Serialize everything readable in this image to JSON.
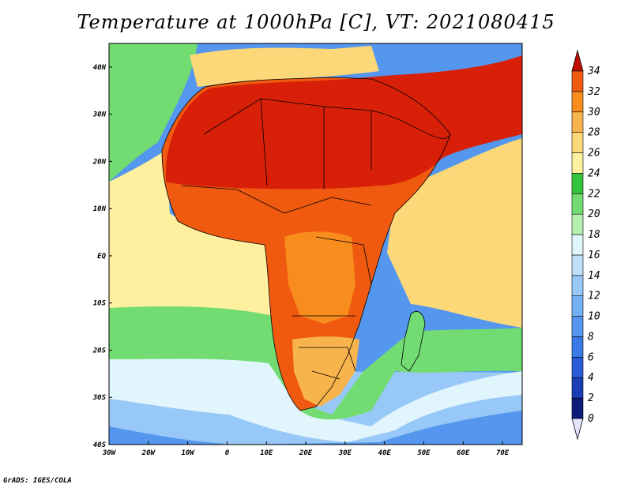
{
  "title": "Temperature at 1000hPa [C], VT: 2021080415",
  "footer": "GrADS: IGES/COLA",
  "map": {
    "projection": "latlon",
    "lon_range": [
      -30,
      75
    ],
    "lat_range": [
      -40,
      45
    ],
    "xticks": [
      {
        "lon": -30,
        "label": "30W"
      },
      {
        "lon": -20,
        "label": "20W"
      },
      {
        "lon": -10,
        "label": "10W"
      },
      {
        "lon": 0,
        "label": "0"
      },
      {
        "lon": 10,
        "label": "10E"
      },
      {
        "lon": 20,
        "label": "20E"
      },
      {
        "lon": 30,
        "label": "30E"
      },
      {
        "lon": 40,
        "label": "40E"
      },
      {
        "lon": 50,
        "label": "50E"
      },
      {
        "lon": 60,
        "label": "60E"
      },
      {
        "lon": 70,
        "label": "70E"
      }
    ],
    "yticks": [
      {
        "lat": 40,
        "label": "40N"
      },
      {
        "lat": 30,
        "label": "30N"
      },
      {
        "lat": 20,
        "label": "20N"
      },
      {
        "lat": 10,
        "label": "10N"
      },
      {
        "lat": 0,
        "label": "EQ"
      },
      {
        "lat": -10,
        "label": "10S"
      },
      {
        "lat": -20,
        "label": "20S"
      },
      {
        "lat": -30,
        "label": "30S"
      },
      {
        "lat": -40,
        "label": "40S"
      }
    ]
  },
  "colorbar": {
    "levels": [
      {
        "value": 0,
        "label": "0",
        "color": "#0c1a7a"
      },
      {
        "value": 2,
        "label": "2",
        "color": "#1a3cb4"
      },
      {
        "value": 4,
        "label": "4",
        "color": "#2a5cd8"
      },
      {
        "value": 6,
        "label": "6",
        "color": "#3a7ae6"
      },
      {
        "value": 8,
        "label": "8",
        "color": "#5596ee"
      },
      {
        "value": 10,
        "label": "10",
        "color": "#74b0f4"
      },
      {
        "value": 12,
        "label": "12",
        "color": "#98c8f8"
      },
      {
        "value": 14,
        "label": "14",
        "color": "#bee0fa"
      },
      {
        "value": 16,
        "label": "16",
        "color": "#e0f6fc"
      },
      {
        "value": 18,
        "label": "18",
        "color": "#b4f0b0"
      },
      {
        "value": 20,
        "label": "20",
        "color": "#72dc72"
      },
      {
        "value": 22,
        "label": "22",
        "color": "#34c43a"
      },
      {
        "value": 24,
        "label": "24",
        "color": "#fff0a0"
      },
      {
        "value": 26,
        "label": "26",
        "color": "#fcd878"
      },
      {
        "value": 28,
        "label": "28",
        "color": "#f8b44c"
      },
      {
        "value": 30,
        "label": "30",
        "color": "#f88c1c"
      },
      {
        "value": 32,
        "label": "32",
        "color": "#f05a10"
      },
      {
        "value": 34,
        "label": "34",
        "color": "#d82008"
      }
    ],
    "below_color": "#e4e4fc",
    "above_color": "#c01004"
  },
  "regions": [
    {
      "name": "southern-ocean-cold",
      "band": "8"
    },
    {
      "name": "south-atlantic-cool",
      "band": "12"
    },
    {
      "name": "subtropical-cool",
      "band": "16"
    },
    {
      "name": "subtropical-green",
      "band": "20"
    },
    {
      "name": "tropical-atlantic",
      "band": "24"
    },
    {
      "name": "indian-ocean",
      "band": "26"
    },
    {
      "name": "africa-land",
      "band": "32"
    },
    {
      "name": "sahara-arabia-hot",
      "band": "34"
    },
    {
      "name": "congo-basin",
      "band": "30"
    },
    {
      "name": "southern-africa",
      "band": "28"
    },
    {
      "name": "mediterranean",
      "band": "26"
    },
    {
      "name": "madagascar",
      "band": "20"
    }
  ]
}
